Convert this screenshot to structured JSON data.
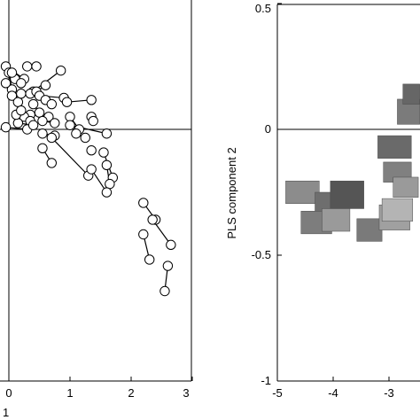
{
  "chart_data": [
    {
      "type": "scatter",
      "title": "",
      "xlabel": "1",
      "ylabel": "",
      "xlim": [
        -0.15,
        3.0
      ],
      "ylim": [
        -1.0,
        0.5
      ],
      "xticks": [
        "0",
        "1",
        "2",
        "3"
      ],
      "yticks": [],
      "grid": false,
      "reference_lines": {
        "x": 0,
        "y": 0
      },
      "connected_pairs": [
        {
          "a": [
            -0.05,
            0.3
          ],
          "b": [
            0.25,
            0.24
          ]
        },
        {
          "a": [
            0.0,
            0.27
          ],
          "b": [
            0.05,
            0.19
          ]
        },
        {
          "a": [
            0.05,
            0.16
          ],
          "b": [
            0.15,
            0.13
          ]
        },
        {
          "a": [
            0.1,
            0.24
          ],
          "b": [
            0.2,
            0.22
          ]
        },
        {
          "a": [
            0.3,
            0.3
          ],
          "b": [
            0.45,
            0.3
          ]
        },
        {
          "a": [
            0.2,
            0.17
          ],
          "b": [
            0.4,
            0.18
          ]
        },
        {
          "a": [
            0.35,
            0.17
          ],
          "b": [
            0.85,
            0.28
          ]
        },
        {
          "a": [
            0.45,
            0.18
          ],
          "b": [
            0.6,
            0.21
          ]
        },
        {
          "a": [
            0.5,
            0.16
          ],
          "b": [
            0.9,
            0.15
          ]
        },
        {
          "a": [
            0.6,
            0.14
          ],
          "b": [
            0.7,
            0.12
          ]
        },
        {
          "a": [
            0.35,
            0.07
          ],
          "b": [
            0.65,
            0.06
          ]
        },
        {
          "a": [
            0.4,
            0.12
          ],
          "b": [
            0.5,
            0.08
          ]
        },
        {
          "a": [
            0.55,
            0.04
          ],
          "b": [
            0.75,
            0.03
          ]
        },
        {
          "a": [
            0.25,
            0.06
          ],
          "b": [
            0.35,
            0.04
          ]
        },
        {
          "a": [
            -0.05,
            0.01
          ],
          "b": [
            0.3,
            0.0
          ]
        },
        {
          "a": [
            0.15,
            0.03
          ],
          "b": [
            0.4,
            0.02
          ]
        },
        {
          "a": [
            0.95,
            0.13
          ],
          "b": [
            1.35,
            0.14
          ]
        },
        {
          "a": [
            1.0,
            0.06
          ],
          "b": [
            1.15,
            0.0
          ]
        },
        {
          "a": [
            1.35,
            0.06
          ],
          "b": [
            1.38,
            0.04
          ]
        },
        {
          "a": [
            1.0,
            0.02
          ],
          "b": [
            1.6,
            -0.02
          ]
        },
        {
          "a": [
            1.1,
            -0.02
          ],
          "b": [
            1.25,
            -0.04
          ]
        },
        {
          "a": [
            0.55,
            -0.02
          ],
          "b": [
            0.75,
            -0.03
          ]
        },
        {
          "a": [
            0.7,
            -0.04
          ],
          "b": [
            1.3,
            -0.22
          ]
        },
        {
          "a": [
            0.55,
            -0.09
          ],
          "b": [
            0.7,
            -0.16
          ]
        },
        {
          "a": [
            1.55,
            -0.11
          ],
          "b": [
            1.7,
            -0.23
          ]
        },
        {
          "a": [
            1.6,
            -0.17
          ],
          "b": [
            1.65,
            -0.26
          ]
        },
        {
          "a": [
            1.35,
            -0.19
          ],
          "b": [
            1.6,
            -0.3
          ]
        },
        {
          "a": [
            2.2,
            -0.35
          ],
          "b": [
            2.4,
            -0.43
          ]
        },
        {
          "a": [
            2.35,
            -0.43
          ],
          "b": [
            2.65,
            -0.55
          ]
        },
        {
          "a": [
            2.2,
            -0.5
          ],
          "b": [
            2.3,
            -0.62
          ]
        },
        {
          "a": [
            2.6,
            -0.65
          ],
          "b": [
            2.55,
            -0.77
          ]
        }
      ],
      "single_points": [
        [
          -0.05,
          0.22
        ],
        [
          0.12,
          0.07
        ],
        [
          0.2,
          0.09
        ],
        [
          1.35,
          -0.1
        ],
        [
          0.05,
          0.27
        ]
      ]
    },
    {
      "type": "scatter",
      "title": "",
      "xlabel": "",
      "ylabel": "PLS component 2",
      "xlim": [
        -5,
        -2.5
      ],
      "ylim": [
        -1,
        0.5
      ],
      "xticks": [
        "-5",
        "-4",
        "-3"
      ],
      "yticks": [
        "0.5",
        "0",
        "-0.5",
        "-1"
      ],
      "xtick_values": [
        -5,
        -4,
        -3
      ],
      "ytick_values": [
        0.5,
        0,
        -0.5,
        -1
      ],
      "grid": false,
      "reference_lines": {
        "y": 0
      },
      "marker": "image-thumbnail",
      "image_points": [
        {
          "x": -4.55,
          "y": -0.25,
          "w": 0.6,
          "h": 0.09,
          "shade": "#8c8c8c"
        },
        {
          "x": -4.05,
          "y": -0.3,
          "w": 0.55,
          "h": 0.1,
          "shade": "#6e6e6e"
        },
        {
          "x": -3.75,
          "y": -0.26,
          "w": 0.6,
          "h": 0.11,
          "shade": "#555555"
        },
        {
          "x": -4.3,
          "y": -0.37,
          "w": 0.55,
          "h": 0.09,
          "shade": "#7d7d7d"
        },
        {
          "x": -3.95,
          "y": -0.36,
          "w": 0.5,
          "h": 0.09,
          "shade": "#9a9a9a"
        },
        {
          "x": -3.35,
          "y": -0.4,
          "w": 0.45,
          "h": 0.09,
          "shade": "#7a7a7a"
        },
        {
          "x": -2.9,
          "y": -0.35,
          "w": 0.55,
          "h": 0.1,
          "shade": "#a0a0a0"
        },
        {
          "x": -2.85,
          "y": -0.32,
          "w": 0.55,
          "h": 0.09,
          "shade": "#b4b4b4"
        },
        {
          "x": -2.9,
          "y": -0.07,
          "w": 0.6,
          "h": 0.09,
          "shade": "#6a6a6a"
        },
        {
          "x": -2.85,
          "y": -0.17,
          "w": 0.5,
          "h": 0.08,
          "shade": "#808080"
        },
        {
          "x": -2.7,
          "y": -0.23,
          "w": 0.45,
          "h": 0.08,
          "shade": "#9a9a9a"
        },
        {
          "x": -2.65,
          "y": 0.07,
          "w": 0.4,
          "h": 0.1,
          "shade": "#7b7b7b"
        },
        {
          "x": -2.6,
          "y": 0.14,
          "w": 0.3,
          "h": 0.08,
          "shade": "#666666"
        }
      ]
    }
  ]
}
